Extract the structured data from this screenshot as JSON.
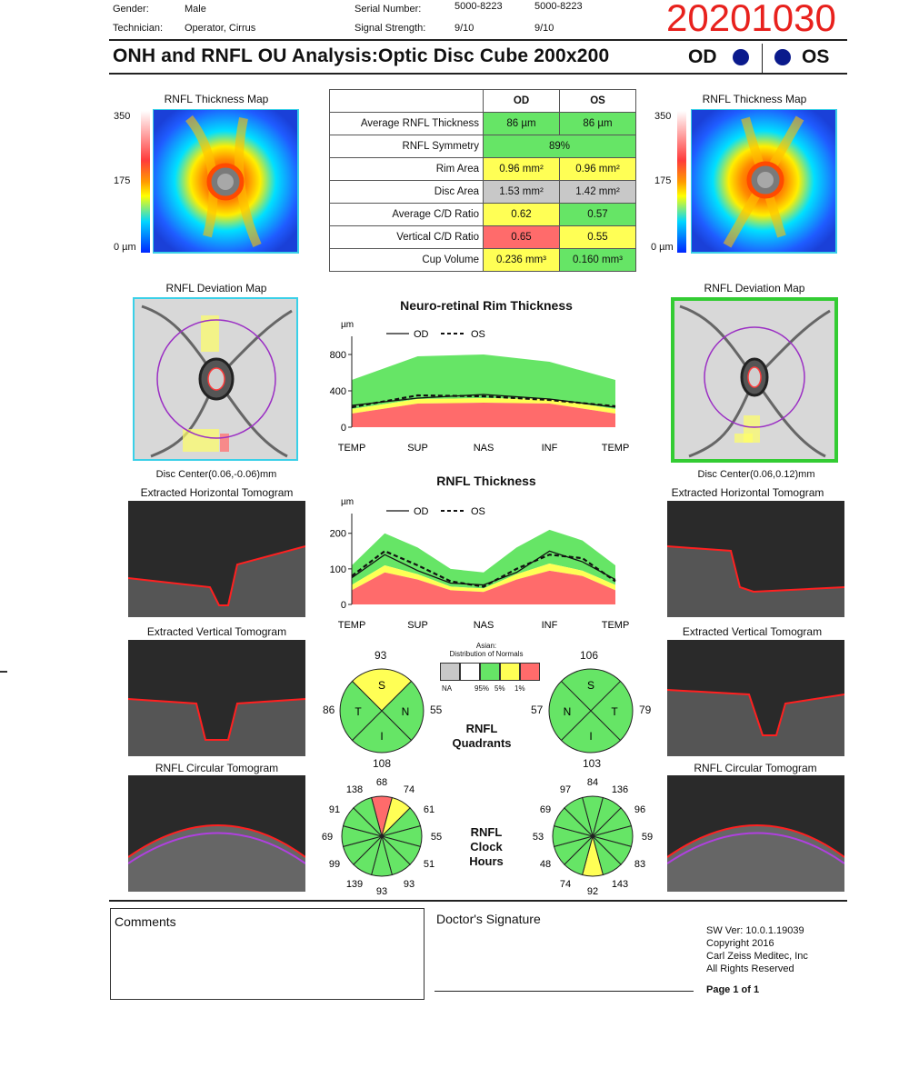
{
  "header": {
    "gender_label": "Gender:",
    "gender_value": "Male",
    "technician_label": "Technician:",
    "technician_value": "Operator, Cirrus",
    "serial_label": "Serial Number:",
    "serial_od": "5000-8223",
    "serial_os": "5000-8223",
    "signal_label": "Signal Strength:",
    "signal_od": "9/10",
    "signal_os": "9/10",
    "date_stamp": "20201030",
    "date_color": "#e8211d",
    "title": "ONH and RNFL OU Analysis:Optic Disc Cube 200x200",
    "od_label": "OD",
    "os_label": "OS",
    "eye_dot_color": "#0a1a8c"
  },
  "colors": {
    "green": "#66e566",
    "yellow": "#ffff55",
    "red": "#ff6b6b",
    "gray": "#c8c8c8"
  },
  "thickness_map": {
    "title_od": "RNFL Thickness Map",
    "title_os": "RNFL Thickness Map",
    "scale_top": "350",
    "scale_mid": "175",
    "scale_bottom": "0 µm"
  },
  "metrics_table": {
    "col_od": "OD",
    "col_os": "OS",
    "rows": [
      {
        "label": "Average RNFL Thickness",
        "od": "86 µm",
        "os": "86 µm"
      },
      {
        "label": "RNFL Symmetry",
        "both": "89%"
      },
      {
        "label": "Rim Area",
        "od": "0.96 mm²",
        "os": "0.96 mm²"
      },
      {
        "label": "Disc Area",
        "od": "1.53 mm²",
        "os": "1.42 mm²"
      },
      {
        "label": "Average C/D Ratio",
        "od": "0.62",
        "os": "0.57"
      },
      {
        "label": "Vertical C/D Ratio",
        "od": "0.65",
        "os": "0.55"
      },
      {
        "label": "Cup Volume",
        "od": "0.236 mm³",
        "os": "0.160 mm³"
      }
    ]
  },
  "deviation_map": {
    "title_od": "RNFL Deviation Map",
    "title_os": "RNFL Deviation Map",
    "disc_center_od": "Disc Center(0.06,-0.06)mm",
    "disc_center_os": "Disc Center(0.06,0.12)mm"
  },
  "tomograms": {
    "horizontal_od": "Extracted Horizontal Tomogram",
    "horizontal_os": "Extracted Horizontal Tomogram",
    "vertical_od": "Extracted Vertical Tomogram",
    "vertical_os": "Extracted Vertical Tomogram",
    "circular_od": "RNFL Circular Tomogram",
    "circular_os": "RNFL Circular Tomogram"
  },
  "chart_data": [
    {
      "type": "line",
      "title": "Neuro-retinal Rim Thickness",
      "ylabel": "µm",
      "ylim": [
        0,
        900
      ],
      "yticks": [
        "800",
        "400",
        "0"
      ],
      "x_labels": [
        "TEMP",
        "SUP",
        "NAS",
        "INF",
        "TEMP"
      ],
      "legend": {
        "od": "OD",
        "os": "OS"
      },
      "x": [
        0,
        1,
        2,
        3,
        4
      ],
      "series": [
        {
          "name": "OD",
          "values": [
            240,
            320,
            360,
            310,
            220
          ]
        },
        {
          "name": "OS",
          "values": [
            220,
            350,
            340,
            300,
            230
          ]
        }
      ],
      "normal_bands": {
        "red_upper": [
          150,
          260,
          270,
          260,
          150
        ],
        "yellow_upper": [
          200,
          310,
          320,
          310,
          200
        ],
        "green_upper": [
          520,
          780,
          800,
          720,
          520
        ]
      }
    },
    {
      "type": "line",
      "title": "RNFL Thickness",
      "ylabel": "µm",
      "ylim": [
        0,
        230
      ],
      "yticks": [
        "200",
        "100",
        "0"
      ],
      "x_labels": [
        "TEMP",
        "SUP",
        "NAS",
        "INF",
        "TEMP"
      ],
      "legend": {
        "od": "OD",
        "os": "OS"
      },
      "x": [
        0,
        0.5,
        1,
        1.5,
        2,
        2.5,
        3,
        3.5,
        4
      ],
      "series": [
        {
          "name": "OD",
          "values": [
            75,
            140,
            95,
            60,
            55,
            90,
            150,
            120,
            70
          ]
        },
        {
          "name": "OS",
          "values": [
            80,
            150,
            110,
            65,
            50,
            100,
            140,
            130,
            65
          ]
        }
      ],
      "normal_bands": {
        "red_upper": [
          40,
          90,
          70,
          40,
          35,
          70,
          95,
          80,
          40
        ],
        "yellow_upper": [
          55,
          110,
          85,
          50,
          45,
          85,
          115,
          95,
          55
        ],
        "green_upper": [
          110,
          200,
          160,
          100,
          90,
          160,
          210,
          180,
          110
        ]
      }
    }
  ],
  "normals_legend": {
    "title_line1": "Asian:",
    "title_line2": "Distribution of Normals",
    "labels": [
      "NA",
      "95%",
      "5%",
      "1%"
    ]
  },
  "quadrants": {
    "label_line1": "RNFL",
    "label_line2": "Quadrants",
    "od": {
      "top": "93",
      "left": "86",
      "right": "55",
      "bottom": "108",
      "S": "S",
      "T": "T",
      "N": "N",
      "I": "I",
      "S_color": "#ffff55",
      "T_color": "#66e566",
      "N_color": "#66e566",
      "I_color": "#66e566"
    },
    "os": {
      "top": "106",
      "left": "57",
      "right": "79",
      "bottom": "103",
      "S": "S",
      "N": "N",
      "T": "T",
      "I": "I"
    }
  },
  "clock_hours": {
    "label_line1": "RNFL",
    "label_line2": "Clock",
    "label_line3": "Hours",
    "od": [
      "68",
      "74",
      "61",
      "55",
      "51",
      "93",
      "93",
      "139",
      "99",
      "69",
      "91",
      "138"
    ],
    "os": [
      "84",
      "136",
      "96",
      "59",
      "83",
      "143",
      "92",
      "74",
      "48",
      "53",
      "69",
      "97"
    ],
    "od_highlight": {
      "red": 0,
      "yellow": 1
    },
    "os_highlight": {
      "yellow": 6
    }
  },
  "footer": {
    "comments": "Comments",
    "doctor_signature": "Doctor's Signature",
    "sw": "SW Ver: 10.0.1.19039",
    "copyright": "Copyright 2016",
    "company": "Carl Zeiss Meditec, Inc",
    "rights": "All Rights Reserved",
    "page": "Page 1 of 1"
  }
}
